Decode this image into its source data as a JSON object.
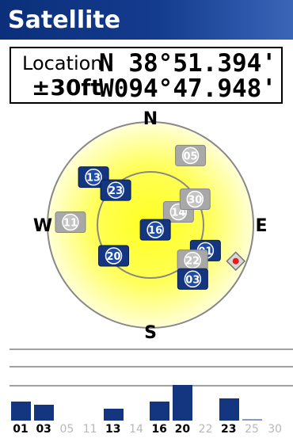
{
  "header": {
    "title": "Satellite"
  },
  "location": {
    "label": "Location",
    "accuracy": "±30ft",
    "lat": "N  38°51.394'",
    "lon": "W094°47.948'"
  },
  "compass": {
    "n": "N",
    "s": "S",
    "e": "E",
    "w": "W"
  },
  "colors": {
    "locked": "#14357f",
    "unlocked": "#a8a8a8",
    "sky": "#ffff33",
    "title_bg": "#0b2f7a"
  },
  "satellites": [
    {
      "id": "13",
      "azimuth": 310,
      "elevation": 25,
      "locked": true
    },
    {
      "id": "23",
      "azimuth": 315,
      "elevation": 47,
      "locked": true
    },
    {
      "id": "05",
      "azimuth": 30,
      "elevation": 20,
      "locked": false
    },
    {
      "id": "14",
      "azimuth": 65,
      "elevation": 63,
      "locked": false
    },
    {
      "id": "30",
      "azimuth": 60,
      "elevation": 45,
      "locked": false
    },
    {
      "id": "11",
      "azimuth": 272,
      "elevation": 20,
      "locked": false
    },
    {
      "id": "16",
      "azimuth": 135,
      "elevation": 84,
      "locked": true
    },
    {
      "id": "20",
      "azimuth": 230,
      "elevation": 48,
      "locked": true
    },
    {
      "id": "01",
      "azimuth": 115,
      "elevation": 37,
      "locked": true
    },
    {
      "id": "22",
      "azimuth": 130,
      "elevation": 42,
      "locked": false
    },
    {
      "id": "03",
      "azimuth": 142,
      "elevation": 30,
      "locked": true
    }
  ],
  "waas_marker": {
    "azimuth": 113,
    "elevation": 9
  },
  "signal_bars": [
    {
      "id": "01",
      "strength": 0.48,
      "locked": true
    },
    {
      "id": "03",
      "strength": 0.4,
      "locked": true
    },
    {
      "id": "05",
      "strength": 0,
      "locked": false
    },
    {
      "id": "11",
      "strength": 0,
      "locked": false
    },
    {
      "id": "13",
      "strength": 0.3,
      "locked": true
    },
    {
      "id": "14",
      "strength": 0,
      "locked": false
    },
    {
      "id": "16",
      "strength": 0.48,
      "locked": true
    },
    {
      "id": "20",
      "strength": 0.9,
      "locked": true
    },
    {
      "id": "22",
      "strength": 0,
      "locked": false
    },
    {
      "id": "23",
      "strength": 0.55,
      "locked": true
    },
    {
      "id": "25",
      "strength": 0.04,
      "locked": false
    },
    {
      "id": "30",
      "strength": 0,
      "locked": false
    }
  ]
}
